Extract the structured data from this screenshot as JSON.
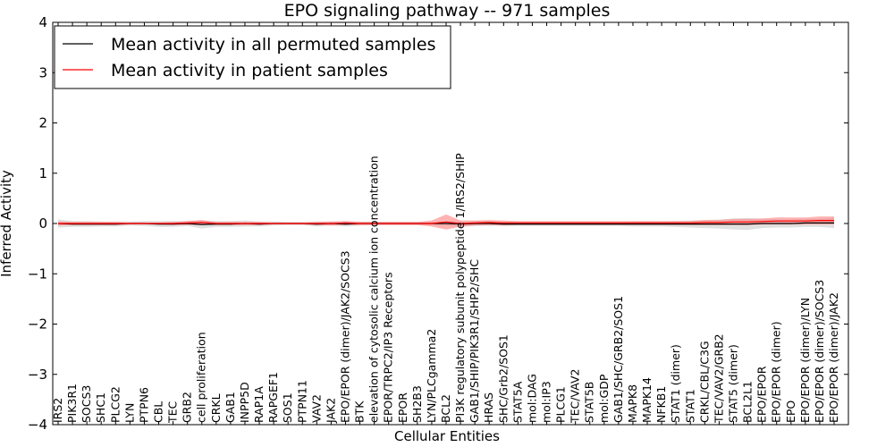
{
  "chart_data": {
    "type": "line",
    "title": "EPO signaling pathway -- 971 samples",
    "xlabel": "Cellular Entities",
    "ylabel": "Inferred Activity",
    "ylim": [
      -4,
      4
    ],
    "yticks": [
      "−4",
      "−3",
      "−2",
      "−1",
      "0",
      "1",
      "2",
      "3",
      "4"
    ],
    "grid": false,
    "legend_position": "top-left",
    "categories": [
      "IRS2",
      "PIK3R1",
      "SOCS3",
      "SHC1",
      "PLCG2",
      "LYN",
      "PTPN6",
      "CBL",
      "TEC",
      "GRB2",
      "cell proliferation",
      "CRKL",
      "GAB1",
      "INPP5D",
      "RAP1A",
      "RAPGEF1",
      "SOS1",
      "PTPN11",
      "VAV2",
      "JAK2",
      "EPO/EPOR (dimer)/JAK2/SOCS3",
      "BTK",
      "elevation of cytosolic calcium ion concentration",
      "EPOR/TRPC2/IP3 Receptors",
      "EPOR",
      "SH2B3",
      "LYN/PLCgamma2",
      "BCL2",
      "PI3K regulatory subunit polypeptide 1/IRS2/SHIP",
      "GAB1/SHIP/PIK3R1/SHP2/SHC",
      "HRAS",
      "SHC/Grb2/SOS1",
      "STAT5A",
      "mol:DAG",
      "mol:IP3",
      "PLCG1",
      "TEC/VAV2",
      "STAT5B",
      "mol:GDP",
      "GAB1/SHC/GRB2/SOS1",
      "MAPK8",
      "MAPK14",
      "NFKB1",
      "STAT1 (dimer)",
      "STAT1",
      "CRKL/CBL/C3G",
      "TEC/VAV2/GRB2",
      "STAT5 (dimer)",
      "BCL2L1",
      "EPO/EPOR",
      "EPO/EPOR (dimer)",
      "EPO",
      "EPO/EPOR (dimer)/LYN",
      "EPO/EPOR (dimer)/SOCS3",
      "EPO/EPOR (dimer)/JAK2"
    ],
    "series": [
      {
        "name": "Mean activity in all permuted samples",
        "color": "#000000",
        "band_color": "#bbbbbb",
        "values": [
          0.0,
          -0.01,
          -0.01,
          -0.01,
          -0.01,
          0.0,
          0.0,
          -0.01,
          -0.01,
          0.0,
          -0.02,
          -0.01,
          -0.01,
          0.0,
          -0.01,
          0.0,
          0.0,
          0.0,
          -0.01,
          0.0,
          -0.01,
          0.0,
          0.0,
          0.0,
          0.0,
          0.0,
          0.0,
          0.0,
          -0.01,
          0.0,
          0.0,
          -0.01,
          -0.01,
          -0.01,
          -0.01,
          -0.01,
          -0.01,
          -0.01,
          -0.01,
          -0.01,
          -0.01,
          -0.01,
          -0.01,
          -0.01,
          -0.01,
          -0.01,
          -0.01,
          -0.01,
          -0.01,
          0.0,
          0.0,
          0.0,
          0.01,
          0.01,
          0.01
        ],
        "band": [
          0.08,
          0.06,
          0.06,
          0.05,
          0.05,
          0.04,
          0.05,
          0.06,
          0.06,
          0.05,
          0.08,
          0.06,
          0.06,
          0.06,
          0.05,
          0.04,
          0.03,
          0.03,
          0.05,
          0.04,
          0.05,
          0.04,
          0.03,
          0.03,
          0.03,
          0.03,
          0.03,
          0.04,
          0.06,
          0.05,
          0.05,
          0.04,
          0.04,
          0.04,
          0.04,
          0.04,
          0.04,
          0.04,
          0.04,
          0.04,
          0.05,
          0.05,
          0.05,
          0.06,
          0.07,
          0.08,
          0.09,
          0.11,
          0.12,
          0.09,
          0.08,
          0.08,
          0.08,
          0.08,
          0.1
        ]
      },
      {
        "name": "Mean activity in patient samples",
        "color": "#ff0000",
        "band_color": "#ff8080",
        "values": [
          0.0,
          0.0,
          0.0,
          0.0,
          0.0,
          0.0,
          0.0,
          0.0,
          0.0,
          0.01,
          0.02,
          0.0,
          0.0,
          0.0,
          0.0,
          0.0,
          0.0,
          0.0,
          0.0,
          0.0,
          0.01,
          0.0,
          0.0,
          0.0,
          0.0,
          0.0,
          0.0,
          0.03,
          0.0,
          0.01,
          0.02,
          0.01,
          0.01,
          0.01,
          0.01,
          0.01,
          0.01,
          0.01,
          0.01,
          0.01,
          0.01,
          0.01,
          0.01,
          0.01,
          0.01,
          0.02,
          0.02,
          0.03,
          0.03,
          0.04,
          0.05,
          0.05,
          0.05,
          0.06,
          0.06
        ],
        "band": [
          0.04,
          0.03,
          0.03,
          0.03,
          0.03,
          0.02,
          0.02,
          0.02,
          0.03,
          0.04,
          0.05,
          0.03,
          0.03,
          0.03,
          0.03,
          0.02,
          0.02,
          0.02,
          0.03,
          0.04,
          0.04,
          0.03,
          0.03,
          0.03,
          0.03,
          0.03,
          0.06,
          0.15,
          0.06,
          0.05,
          0.05,
          0.05,
          0.04,
          0.04,
          0.04,
          0.04,
          0.04,
          0.04,
          0.04,
          0.04,
          0.04,
          0.04,
          0.04,
          0.04,
          0.04,
          0.05,
          0.05,
          0.06,
          0.06,
          0.06,
          0.07,
          0.07,
          0.07,
          0.08,
          0.08
        ]
      }
    ]
  }
}
